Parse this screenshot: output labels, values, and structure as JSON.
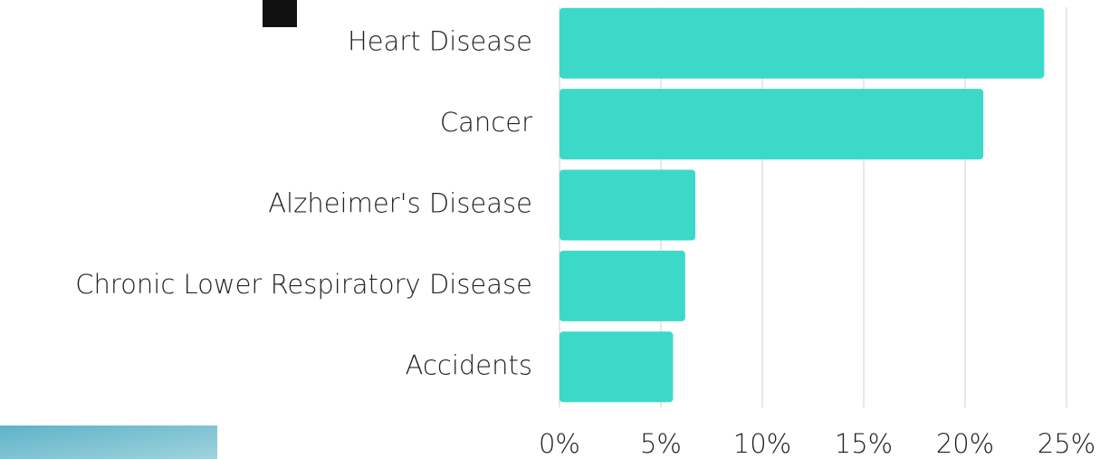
{
  "chart_data": {
    "type": "bar",
    "orientation": "horizontal",
    "categories": [
      "Heart Disease",
      "Cancer",
      "Alzheimer's Disease",
      "Chronic Lower Respiratory Disease",
      "Accidents"
    ],
    "values": [
      23.9,
      20.9,
      6.7,
      6.2,
      5.6
    ],
    "color": "#3dd9c8",
    "xlim": [
      0,
      25
    ],
    "xticks": [
      {
        "value": 0,
        "label": "0%"
      },
      {
        "value": 5,
        "label": "5%"
      },
      {
        "value": 10,
        "label": "10%"
      },
      {
        "value": 15,
        "label": "15%"
      },
      {
        "value": 20,
        "label": "20%"
      },
      {
        "value": 25,
        "label": "25%"
      }
    ],
    "grid": true
  }
}
